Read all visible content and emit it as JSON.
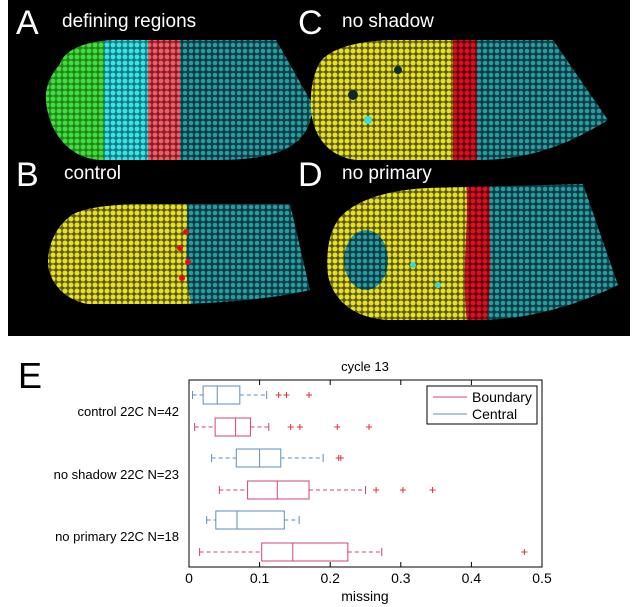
{
  "figure": {
    "panel_a": {
      "letter": "A",
      "title": "defining regions"
    },
    "panel_b": {
      "letter": "B",
      "title": "control"
    },
    "panel_c": {
      "letter": "C",
      "title": "no shadow"
    },
    "panel_d": {
      "letter": "D",
      "title": "no primary"
    },
    "panel_e": {
      "letter": "E"
    }
  },
  "colors": {
    "green": "#3fd23c",
    "cyan_bright": "#39d8dc",
    "red": "#e8505a",
    "teal": "#1f8b93",
    "yellow": "#e0dc2a",
    "red_dark": "#d81020",
    "boundary": "#d2427a",
    "central": "#5b8fc0"
  },
  "chart_data": {
    "type": "boxplot",
    "title": "cycle 13",
    "xlabel": "missing",
    "ylabel": "",
    "xlim": [
      0,
      0.5
    ],
    "xticks": [
      "0",
      "0.1",
      "0.2",
      "0.3",
      "0.4",
      "0.5"
    ],
    "groups": [
      "control 22C N=42",
      "no shadow 22C N=23",
      "no primary 22C N=18"
    ],
    "legend": {
      "position": "top-right",
      "entries": [
        "Boundary",
        "Central"
      ]
    },
    "series": [
      {
        "name": "Central",
        "color": "#5b8fc0",
        "boxes": [
          {
            "group": "control 22C N=42",
            "min": 0.005,
            "q1": 0.02,
            "median": 0.04,
            "q3": 0.072,
            "max": 0.11,
            "outliers": [
              0.127,
              0.138,
              0.17
            ]
          },
          {
            "group": "no shadow 22C N=23",
            "min": 0.032,
            "q1": 0.067,
            "median": 0.1,
            "q3": 0.13,
            "max": 0.19,
            "outliers": [
              0.212,
              0.215
            ]
          },
          {
            "group": "no primary 22C N=18",
            "min": 0.025,
            "q1": 0.038,
            "median": 0.068,
            "q3": 0.135,
            "max": 0.156,
            "outliers": []
          }
        ]
      },
      {
        "name": "Boundary",
        "color": "#d2427a",
        "boxes": [
          {
            "group": "control 22C N=42",
            "min": 0.008,
            "q1": 0.037,
            "median": 0.066,
            "q3": 0.087,
            "max": 0.113,
            "outliers": [
              0.144,
              0.157,
              0.21,
              0.255
            ]
          },
          {
            "group": "no shadow 22C N=23",
            "min": 0.043,
            "q1": 0.083,
            "median": 0.125,
            "q3": 0.17,
            "max": 0.25,
            "outliers": [
              0.265,
              0.303,
              0.345
            ]
          },
          {
            "group": "no primary 22C N=18",
            "min": 0.015,
            "q1": 0.103,
            "median": 0.147,
            "q3": 0.225,
            "max": 0.273,
            "outliers": [
              0.475
            ]
          }
        ]
      }
    ]
  }
}
